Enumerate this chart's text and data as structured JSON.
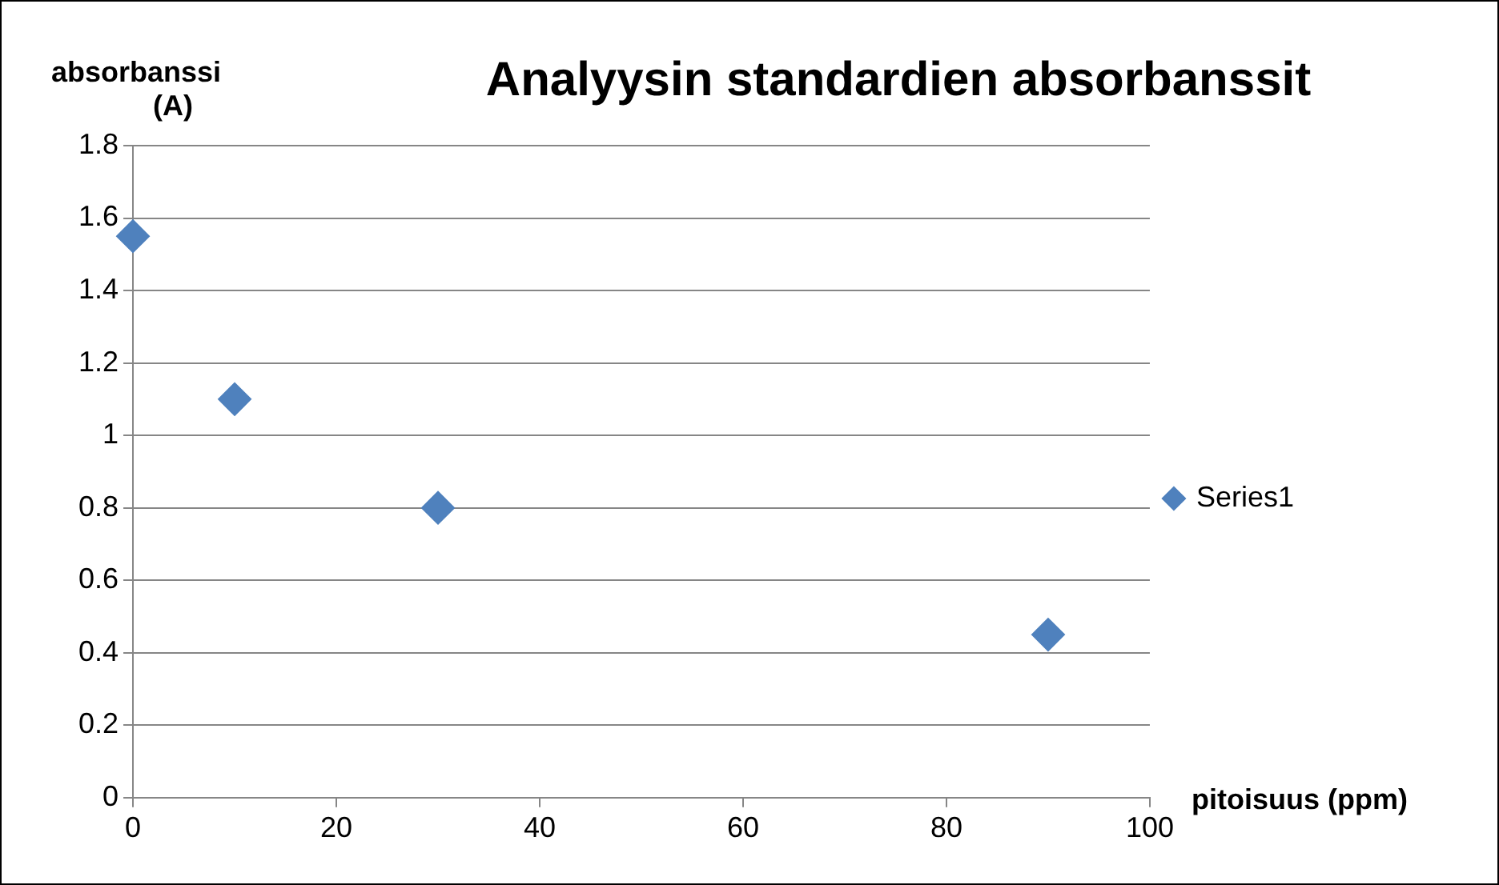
{
  "chart_data": {
    "type": "scatter",
    "title": "Analyysin standardien absorbanssit",
    "xlabel": "pitoisuus (ppm)",
    "ylabel": "absorbanssi (A)",
    "series": [
      {
        "name": "Series1",
        "color": "#4f81bd",
        "x": [
          0,
          10,
          30,
          90
        ],
        "values": [
          1.55,
          1.1,
          0.8,
          0.45
        ]
      }
    ],
    "xlim": [
      0,
      100
    ],
    "xticks": [
      0,
      20,
      40,
      60,
      80,
      100
    ],
    "ylim": [
      0,
      1.8
    ],
    "yticks": [
      0,
      0.2,
      0.4,
      0.6,
      0.8,
      1,
      1.2,
      1.4,
      1.6,
      1.8
    ],
    "grid": "y",
    "legend": "right",
    "marker": "diamond"
  }
}
